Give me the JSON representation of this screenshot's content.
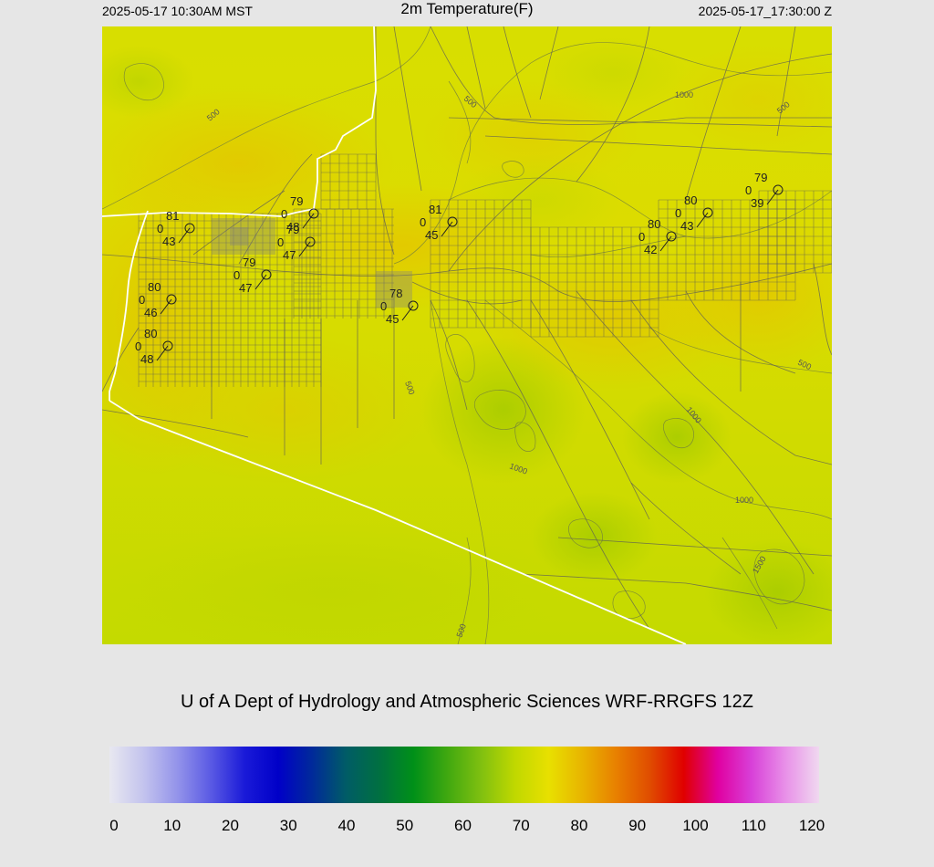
{
  "header": {
    "local_time": "2025-05-17 10:30AM MST",
    "title": "2m Temperature(F)",
    "valid_time": "2025-05-17_17:30:00 Z"
  },
  "credit": "U of A Dept of Hydrology and Atmospheric Sciences WRF-RRGFS 12Z",
  "colorbar": {
    "ticks": [
      "0",
      "10",
      "20",
      "30",
      "40",
      "50",
      "60",
      "70",
      "80",
      "90",
      "100",
      "110",
      "120"
    ],
    "colors": [
      "#e8e8f0",
      "#c4c4ee",
      "#9494ea",
      "#5a5ae4",
      "#1a1ad8",
      "#0000c8",
      "#002a9a",
      "#005c66",
      "#007040",
      "#009018",
      "#40a810",
      "#80c010",
      "#c0d800",
      "#e8e000",
      "#e8b400",
      "#e88000",
      "#e04c00",
      "#e00000",
      "#e000a0",
      "#d840d8",
      "#e890e8",
      "#f0d8f0"
    ]
  },
  "contour_labels": [
    "500",
    "1000",
    "1500"
  ],
  "stations": [
    {
      "temp": "81",
      "wind": "0",
      "dew": "43"
    },
    {
      "temp": "79",
      "wind": "0",
      "dew": "48"
    },
    {
      "temp": "79",
      "wind": "0",
      "dew": "47"
    },
    {
      "temp": "79",
      "wind": "0",
      "dew": "47"
    },
    {
      "temp": "80",
      "wind": "0",
      "dew": "46"
    },
    {
      "temp": "80",
      "wind": "0",
      "dew": "48"
    },
    {
      "temp": "81",
      "wind": "0",
      "dew": "45"
    },
    {
      "temp": "78",
      "wind": "0",
      "dew": "45"
    },
    {
      "temp": "80",
      "wind": "0",
      "dew": "42"
    },
    {
      "temp": "80",
      "wind": "0",
      "dew": "43"
    },
    {
      "temp": "79",
      "wind": "0",
      "dew": "39"
    }
  ]
}
